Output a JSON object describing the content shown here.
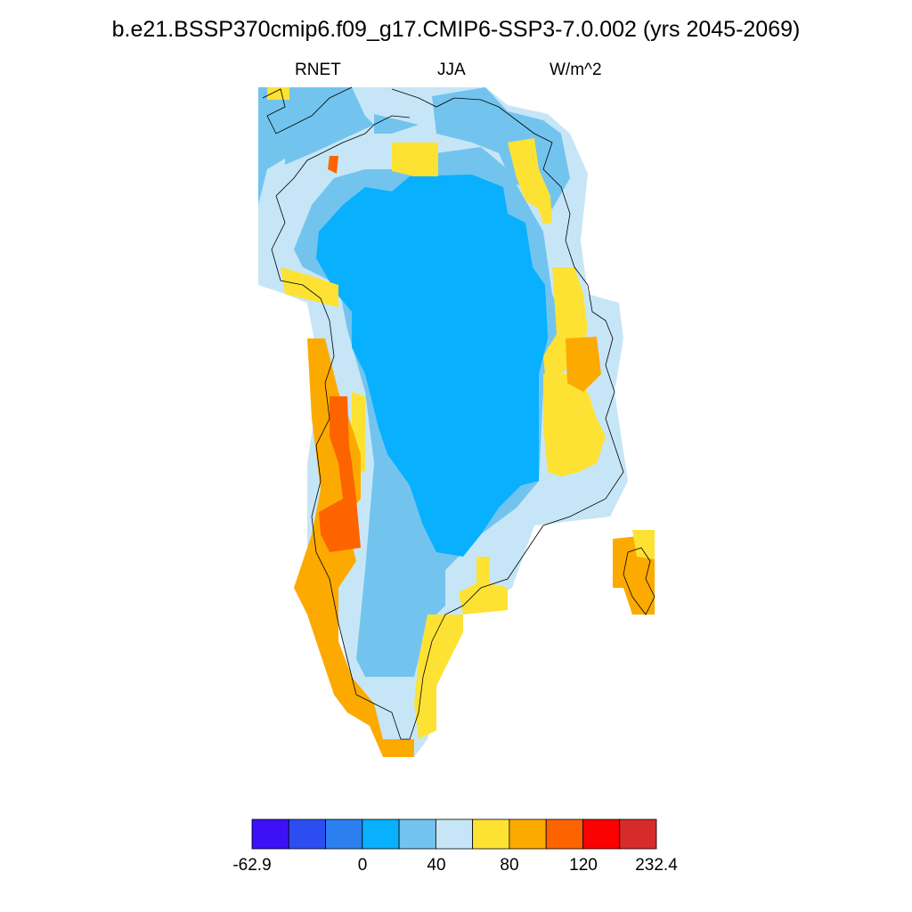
{
  "title": "b.e21.BSSP370cmip6.f09_g17.CMIP6-SSP3-7.0.002 (yrs 2045-2069)",
  "subtitle": {
    "left": "RNET",
    "center": "JJA",
    "right": "W/m^2"
  },
  "legend": {
    "colors": [
      "#3d10f5",
      "#2c4ef0",
      "#2b7fee",
      "#08b0fe",
      "#72c4ee",
      "#c6e6f7",
      "#fde234",
      "#fdaa00",
      "#fd6400",
      "#fa0202",
      "#d72b2b"
    ],
    "tick_labels": [
      "-62.9",
      "0",
      "40",
      "80",
      "120",
      "232.4"
    ]
  },
  "map": {
    "region": "Greenland",
    "variable": "RNET",
    "season": "JJA",
    "units": "W/m^2",
    "levels": [
      -62.9,
      -40,
      -20,
      0,
      20,
      40,
      60,
      80,
      100,
      120,
      140,
      232.4
    ]
  }
}
